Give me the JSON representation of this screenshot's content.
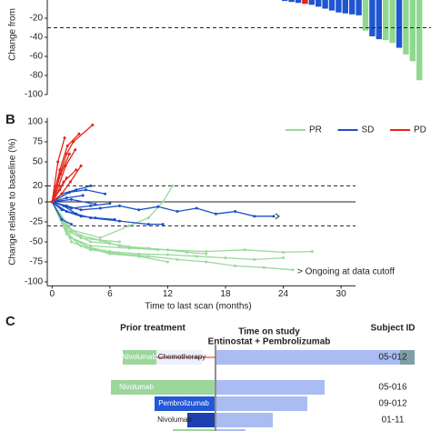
{
  "chart_data": [
    {
      "type": "waterfall",
      "y_label": "Change from",
      "values": [
        -2,
        -3,
        -4,
        -5,
        -6,
        -8,
        -10,
        -12,
        -14,
        -15,
        -16,
        -17,
        -33,
        -39,
        -42,
        -43,
        -46,
        -51,
        -58,
        -65,
        -85
      ],
      "colors": [
        "#1f55d0",
        "#1f55d0",
        "#1f55d0",
        "#e3241b",
        "#1f55d0",
        "#1f55d0",
        "#1f55d0",
        "#1f55d0",
        "#1f55d0",
        "#1f55d0",
        "#1f55d0",
        "#1f55d0",
        "#8fd88f",
        "#1f55d0",
        "#1f55d0",
        "#8fd88f",
        "#8fd88f",
        "#1f55d0",
        "#8fd88f",
        "#8fd88f",
        "#8fd88f"
      ],
      "ylim": [
        -100,
        0
      ],
      "yticks": [
        -20,
        -40,
        -60,
        -80,
        -100
      ],
      "reference_lines": [
        -30
      ]
    },
    {
      "type": "spider",
      "panel": "B",
      "x_label": "Time to last scan (months)",
      "y_label": "Change relative to baseline (%)",
      "annotation": "> Ongoing at data cutoff",
      "xlim": [
        -0.5,
        31.5
      ],
      "xticks": [
        0,
        6,
        12,
        18,
        24,
        30
      ],
      "ylim": [
        -105,
        105
      ],
      "yticks": [
        100,
        75,
        50,
        20,
        0,
        -25,
        -50,
        -75,
        -100
      ],
      "reference_lines": [
        {
          "value": 20,
          "style": "dashed"
        },
        {
          "value": 0,
          "style": "solid"
        },
        {
          "value": -30,
          "style": "dashed"
        }
      ],
      "legend": "top-right",
      "series": [
        {
          "name": "PR",
          "color": "#9ad99a",
          "lines": [
            {
              "x": [
                0,
                2,
                5,
                8,
                10,
                11.5,
                12.5
              ],
              "values": [
                0,
                -35,
                -45,
                -30,
                -20,
                0,
                20
              ]
            },
            {
              "x": [
                0,
                2,
                4,
                8,
                12,
                16,
                20,
                24,
                27
              ],
              "values": [
                0,
                -45,
                -55,
                -58,
                -60,
                -62,
                -60,
                -63,
                -62
              ]
            },
            {
              "x": [
                0,
                1.5,
                3,
                6,
                9,
                12,
                15,
                18,
                21,
                24
              ],
              "values": [
                0,
                -40,
                -55,
                -62,
                -65,
                -66,
                -68,
                -70,
                -72,
                -70
              ]
            },
            {
              "x": [
                0,
                2,
                4,
                7,
                10,
                13,
                16,
                19,
                22,
                25
              ],
              "values": [
                0,
                -50,
                -60,
                -65,
                -68,
                -72,
                -75,
                -80,
                -82,
                -85
              ]
            },
            {
              "x": [
                0,
                2,
                4,
                6,
                9,
                12
              ],
              "values": [
                0,
                -45,
                -58,
                -65,
                -68,
                -75
              ]
            },
            {
              "x": [
                0,
                1.5,
                3,
                5,
                7,
                9,
                11
              ],
              "values": [
                0,
                -32,
                -42,
                -48,
                -55,
                -58,
                -60
              ]
            },
            {
              "x": [
                0,
                2,
                4,
                6,
                8,
                10,
                12,
                14,
                16
              ],
              "values": [
                0,
                -38,
                -50,
                -52,
                -56,
                -58,
                -60,
                -63,
                -65
              ]
            },
            {
              "x": [
                0,
                1.5,
                3,
                5,
                7
              ],
              "values": [
                0,
                -35,
                -45,
                -48,
                -50
              ]
            }
          ]
        },
        {
          "name": "SD",
          "color": "#1b4fc4",
          "lines": [
            {
              "x": [
                0,
                1.5,
                3,
                5,
                7,
                9,
                11,
                13,
                15,
                17,
                19,
                21,
                23
              ],
              "values": [
                0,
                -5,
                -10,
                -8,
                -5,
                -10,
                -6,
                -12,
                -8,
                -15,
                -12,
                -18,
                -18
              ],
              "ongoing": true
            },
            {
              "x": [
                0,
                1,
                2.5,
                4
              ],
              "values": [
                0,
                10,
                15,
                20
              ]
            },
            {
              "x": [
                0,
                1.5,
                3,
                4.5,
                6.5
              ],
              "values": [
                0,
                -12,
                -18,
                -20,
                -22
              ]
            },
            {
              "x": [
                0,
                1.2,
                2.5,
                4,
                7,
                10,
                11.5
              ],
              "values": [
                0,
                -5,
                -15,
                -20,
                -24,
                -28,
                -28
              ]
            },
            {
              "x": [
                0,
                1.5,
                3.2
              ],
              "values": [
                0,
                5,
                8
              ]
            },
            {
              "x": [
                0,
                2,
                4,
                6
              ],
              "values": [
                0,
                -8,
                -5,
                -2
              ]
            },
            {
              "x": [
                0,
                1,
                2.5
              ],
              "values": [
                0,
                -10,
                -15
              ]
            },
            {
              "x": [
                0,
                1.8,
                3.5,
                5.5
              ],
              "values": [
                0,
                12,
                15,
                10
              ]
            },
            {
              "x": [
                0,
                1,
                2
              ],
              "values": [
                0,
                -22,
                -28
              ]
            },
            {
              "x": [
                0,
                2,
                4.5
              ],
              "values": [
                0,
                3,
                -3
              ]
            }
          ]
        },
        {
          "name": "PD",
          "color": "#e3241b",
          "lines": [
            {
              "x": [
                0,
                0.7,
                1.5,
                2.2,
                4.2
              ],
              "values": [
                0,
                30,
                60,
                75,
                96
              ]
            },
            {
              "x": [
                0,
                0.8,
                1.6,
                2.8
              ],
              "values": [
                0,
                40,
                70,
                85
              ]
            },
            {
              "x": [
                0,
                0.6,
                1.3
              ],
              "values": [
                0,
                50,
                80
              ]
            },
            {
              "x": [
                0,
                0.9,
                1.8
              ],
              "values": [
                0,
                35,
                60
              ]
            },
            {
              "x": [
                0,
                0.7,
                1.4,
                2.4
              ],
              "values": [
                0,
                20,
                45,
                65
              ]
            },
            {
              "x": [
                0,
                1.2,
                2.5
              ],
              "values": [
                0,
                25,
                40
              ]
            },
            {
              "x": [
                0,
                0.8,
                1.5
              ],
              "values": [
                0,
                15,
                30
              ]
            },
            {
              "x": [
                0,
                1.0,
                1.9,
                3.0
              ],
              "values": [
                0,
                10,
                25,
                45
              ]
            }
          ]
        }
      ]
    }
  ],
  "panel_c": {
    "label": "C",
    "prior_header": "Prior treatment",
    "study_header": [
      "Time on study",
      "Entinostat + Pembrolizumab"
    ],
    "id_header": "Subject ID",
    "rows": [
      {
        "prior": [
          "Nivolumab",
          "Chemotherapy"
        ],
        "subject_id": "05-012"
      },
      {
        "prior": [
          "Nivolumab"
        ],
        "subject_id": "05-016"
      },
      {
        "prior": [
          "Pembrolizumab"
        ],
        "subject_id": "09-012"
      },
      {
        "prior": [
          "Nivolumab"
        ],
        "subject_id": "01-11"
      }
    ]
  }
}
